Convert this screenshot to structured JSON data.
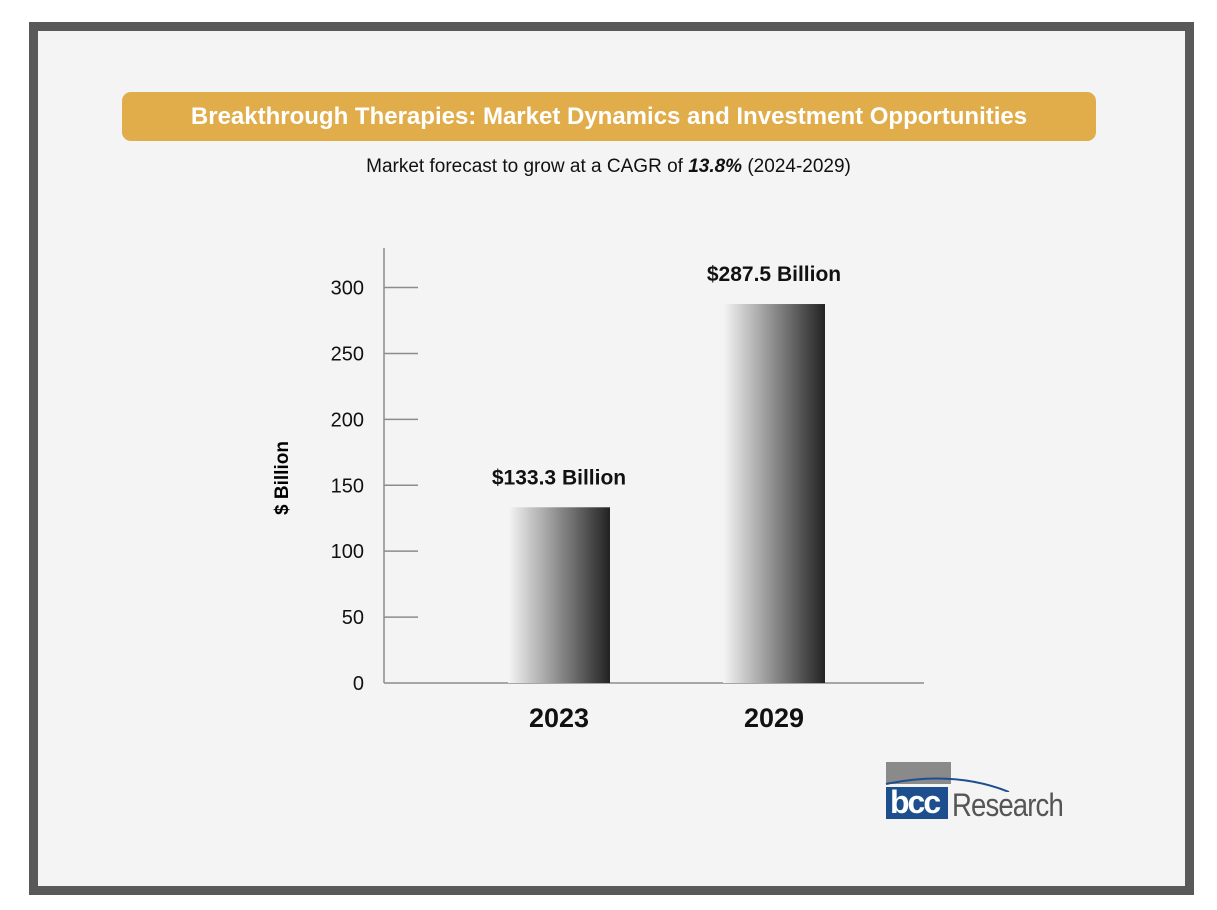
{
  "header": {
    "title": "Breakthrough Therapies: Market Dynamics and Investment Opportunities",
    "subtitle_prefix": "Market forecast to grow at a CAGR of ",
    "subtitle_cagr": "13.8%",
    "subtitle_suffix": " (2024-2029)"
  },
  "chart_data": {
    "type": "bar",
    "categories": [
      "2023",
      "2029"
    ],
    "values": [
      133.3,
      287.5
    ],
    "data_labels": [
      "$133.3 Billion",
      "$287.5 Billion"
    ],
    "ylabel": "$ Billion",
    "ylim": [
      0,
      330
    ],
    "yticks": [
      0,
      50,
      100,
      150,
      200,
      250,
      300
    ],
    "grid": false,
    "bar_gradient": [
      "#f5f5f5",
      "#222222"
    ]
  },
  "colors": {
    "title_bar": "#e0ad4a",
    "frame": "#595959",
    "background": "#f4f4f4",
    "logo_blue": "#1d4f8f"
  },
  "logo": {
    "mark": "bcc",
    "word": "Research"
  }
}
